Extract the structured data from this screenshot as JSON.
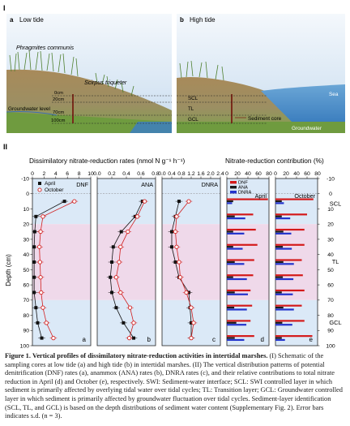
{
  "section_labels": {
    "one": "I",
    "two": "II"
  },
  "schematic": {
    "panel_a": {
      "letter": "a",
      "title": "Low tide"
    },
    "panel_b": {
      "letter": "b",
      "title": "High tide"
    },
    "phragmites": "Phragmites communis",
    "scirpus": "Scirpus triqueter",
    "groundwater_level": "Groundwater level",
    "depths": [
      "0cm",
      "20cm",
      "70cm",
      "100cm"
    ],
    "layers": [
      "SCL",
      "TL",
      "GCL"
    ],
    "sea": "Sea",
    "sediment_core": "Sediment core",
    "groundwater": "Groundwater"
  },
  "section_two": {
    "left_title": "Dissimilatory nitrate-reduction rates (nmol N g⁻¹ h⁻¹)",
    "right_title": "Nitrate-reduction contribution (%)",
    "ylabel": "Depth (cm)",
    "zone_labels": [
      "SCL",
      "TL",
      "GCL"
    ],
    "colors": {
      "april": "#111111",
      "october": "#d11f1f",
      "dnf": "#d41a1a",
      "ana": "#1a1a1a",
      "dnra": "#2233cc",
      "scl": "#dbe9f7",
      "tl": "#efd9ea",
      "gcl": "#dbe9f7"
    }
  },
  "chart_data": [
    {
      "type": "line",
      "panel": "a",
      "name": "DNF",
      "xlim": [
        0,
        10
      ],
      "xticks": [
        "0",
        "2",
        "4",
        "6",
        "8",
        "10"
      ],
      "ylim": [
        -10,
        100
      ],
      "yticks": [
        "-10",
        "0",
        "10",
        "20",
        "30",
        "40",
        "50",
        "60",
        "70",
        "80",
        "90",
        "100"
      ],
      "legend": [
        "April",
        "October"
      ],
      "depth": [
        5,
        15,
        25,
        35,
        45,
        55,
        65,
        75,
        85,
        95
      ],
      "series": [
        {
          "name": "April",
          "values": [
            5.5,
            0.6,
            0.4,
            0.3,
            0.3,
            0.3,
            0.3,
            0.6,
            0.9,
            1.6
          ]
        },
        {
          "name": "October",
          "values": [
            7.2,
            1.8,
            1.4,
            1.2,
            1.3,
            1.4,
            1.5,
            1.8,
            2.4,
            3.6
          ]
        }
      ]
    },
    {
      "type": "line",
      "panel": "b",
      "name": "ANA",
      "xlim": [
        0,
        0.8
      ],
      "xticks": [
        "0.0",
        "0.2",
        "0.4",
        "0.6",
        "0.8"
      ],
      "depth": [
        5,
        15,
        25,
        35,
        45,
        55,
        65,
        75,
        85,
        95
      ],
      "series": [
        {
          "name": "April",
          "values": [
            0.62,
            0.52,
            0.33,
            0.22,
            0.2,
            0.18,
            0.2,
            0.26,
            0.36,
            0.5
          ]
        },
        {
          "name": "October",
          "values": [
            0.65,
            0.55,
            0.42,
            0.32,
            0.3,
            0.26,
            0.32,
            0.45,
            0.5,
            0.44
          ]
        }
      ]
    },
    {
      "type": "line",
      "panel": "c",
      "name": "DNRA",
      "xlim": [
        0,
        2.4
      ],
      "xticks": [
        "0.0",
        "0.4",
        "0.8",
        "1.2",
        "1.6",
        "2.0",
        "2.4"
      ],
      "depth": [
        5,
        15,
        25,
        35,
        45,
        55,
        65,
        75,
        85,
        95
      ],
      "series": [
        {
          "name": "April",
          "values": [
            0.7,
            0.55,
            0.4,
            0.4,
            0.55,
            0.7,
            1.1,
            1.15,
            1.2,
            1.2
          ]
        },
        {
          "name": "October",
          "values": [
            1.1,
            0.6,
            0.55,
            0.6,
            0.7,
            0.75,
            1.0,
            1.2,
            1.3,
            1.2
          ]
        }
      ]
    },
    {
      "type": "bar",
      "panel": "d",
      "name": "April",
      "xlim": [
        0,
        80
      ],
      "xticks": [
        "0",
        "20",
        "40",
        "60",
        "80"
      ],
      "legend": [
        "DNF",
        "ANA",
        "DNRA"
      ],
      "depth": [
        5,
        15,
        25,
        35,
        45,
        55,
        65,
        75,
        85,
        95
      ],
      "series": [
        {
          "name": "DNF",
          "values": [
            78,
            50,
            55,
            58,
            52,
            50,
            45,
            48,
            45,
            52
          ]
        },
        {
          "name": "ANA",
          "values": [
            12,
            15,
            12,
            12,
            15,
            12,
            15,
            14,
            18,
            15
          ]
        },
        {
          "name": "DNRA",
          "values": [
            10,
            35,
            33,
            30,
            33,
            38,
            40,
            38,
            37,
            33
          ]
        }
      ]
    },
    {
      "type": "bar",
      "panel": "e",
      "name": "October",
      "xlim": [
        0,
        80
      ],
      "xticks": [
        "0",
        "20",
        "40",
        "60",
        "80"
      ],
      "depth": [
        5,
        15,
        25,
        35,
        45,
        55,
        65,
        75,
        85,
        95
      ],
      "series": [
        {
          "name": "DNF",
          "values": [
            72,
            60,
            55,
            55,
            50,
            52,
            55,
            50,
            55,
            70
          ]
        },
        {
          "name": "ANA",
          "values": [
            12,
            12,
            15,
            14,
            15,
            14,
            12,
            15,
            13,
            12
          ]
        },
        {
          "name": "DNRA",
          "values": [
            16,
            28,
            30,
            31,
            35,
            34,
            33,
            35,
            32,
            18
          ]
        }
      ]
    }
  ],
  "caption": {
    "label": "Figure 1.",
    "title": "Vertical profiles of dissimilatory nitrate-reduction activities in intertidal marshes.",
    "text": "(I) Schematic of the sampling cores at low tide (a) and high tide (b) in intertidal marshes. (II) The vertical distribution patterns of potential denitrification (DNF) rates (a), anammox (ANA) rates (b), DNRA rates (c), and their relative contributions to total nitrate reduction in April (d) and October (e), respectively. SWI: Sediment-water interface; SCL: SWI controlled layer in which sediment is primarily affected by overlying tidal water over tidal cycles; TL: Transition layer; GCL: Groundwater controlled layer in which sediment is primarily affected by groundwater fluctuation over tidal cycles. Sediment-layer identification (SCL, TL, and GCL) is based on the depth distributions of sediment water content (Supplementary Fig. 2). Error bars indicates s.d. (n = 3)."
  }
}
